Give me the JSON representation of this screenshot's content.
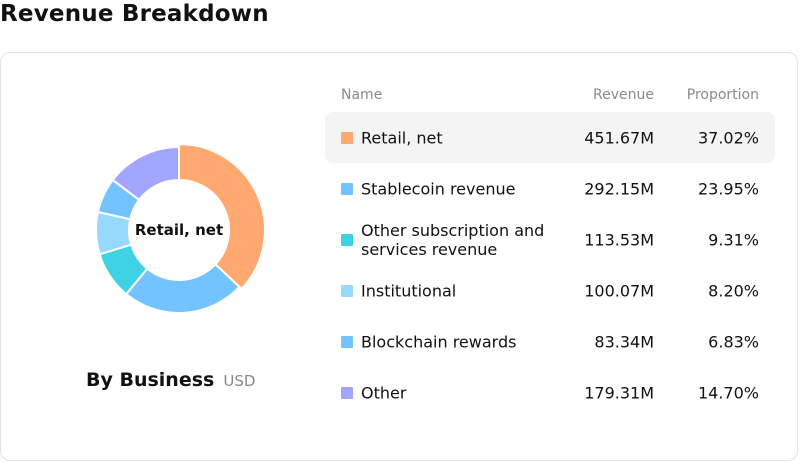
{
  "page": {
    "title": "Revenue Breakdown"
  },
  "panel": {
    "title": "By Business",
    "unit": "USD"
  },
  "table": {
    "headers": {
      "name": "Name",
      "revenue": "Revenue",
      "proportion": "Proportion"
    },
    "rows": [
      {
        "name": "Retail, net",
        "revenue": "451.67M",
        "proportion": "37.02%",
        "color": "#FFA970"
      },
      {
        "name": "Stablecoin revenue",
        "revenue": "292.15M",
        "proportion": "23.95%",
        "color": "#72C3FF"
      },
      {
        "name": "Other subscription and services revenue",
        "revenue": "113.53M",
        "proportion": "9.31%",
        "color": "#3FD2E4"
      },
      {
        "name": "Institutional",
        "revenue": "100.07M",
        "proportion": "8.20%",
        "color": "#96D9FC"
      },
      {
        "name": "Blockchain rewards",
        "revenue": "83.34M",
        "proportion": "6.83%",
        "color": "#72C3FF"
      },
      {
        "name": "Other",
        "revenue": "179.31M",
        "proportion": "14.70%",
        "color": "#A3A6FF"
      }
    ]
  },
  "chart_data": {
    "type": "pie",
    "title": "By Business",
    "unit": "USD",
    "center_label": "Retail, net",
    "categories": [
      "Retail, net",
      "Stablecoin revenue",
      "Other subscription and services revenue",
      "Institutional",
      "Blockchain rewards",
      "Other"
    ],
    "values": [
      451.67,
      292.15,
      113.53,
      100.07,
      83.34,
      179.31
    ],
    "proportions": [
      37.02,
      23.95,
      9.31,
      8.2,
      6.83,
      14.7
    ],
    "colors": [
      "#FFA970",
      "#72C3FF",
      "#3FD2E4",
      "#96D9FC",
      "#72C3FF",
      "#A3A6FF"
    ],
    "highlighted": "Retail, net"
  }
}
